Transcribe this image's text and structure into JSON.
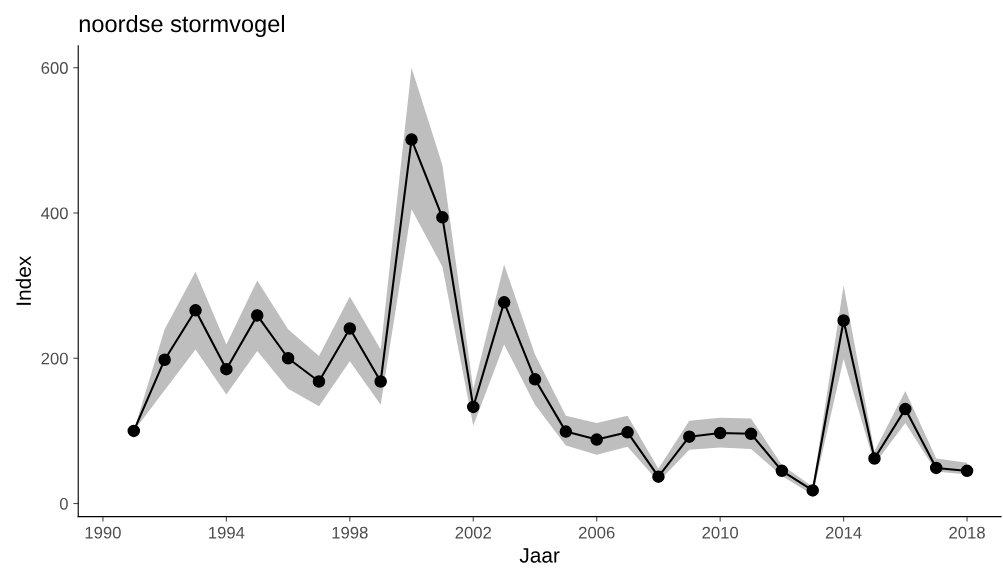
{
  "chart_data": {
    "type": "line",
    "title": "noordse stormvogel",
    "xlabel": "Jaar",
    "ylabel": "Index",
    "x": [
      1991,
      1992,
      1993,
      1994,
      1995,
      1996,
      1997,
      1998,
      1999,
      2000,
      2001,
      2002,
      2003,
      2004,
      2005,
      2006,
      2007,
      2008,
      2009,
      2010,
      2011,
      2012,
      2013,
      2014,
      2015,
      2016,
      2017,
      2018
    ],
    "series": [
      {
        "color": "#000000",
        "values": [
          100,
          198,
          266,
          185,
          259,
          200,
          168,
          241,
          168,
          501,
          394,
          133,
          277,
          171,
          99,
          88,
          98,
          37,
          92,
          97,
          96,
          45,
          18,
          252,
          62,
          130,
          49,
          45
        ],
        "lower": [
          100,
          156,
          212,
          150,
          210,
          158,
          134,
          196,
          136,
          405,
          326,
          107,
          219,
          136,
          80,
          67,
          78,
          30,
          74,
          77,
          75,
          38,
          12,
          199,
          54,
          111,
          44,
          40
        ],
        "upper": [
          100,
          240,
          319,
          219,
          307,
          240,
          203,
          285,
          212,
          600,
          466,
          158,
          329,
          205,
          121,
          111,
          121,
          48,
          114,
          118,
          117,
          53,
          23,
          300,
          72,
          155,
          62,
          56
        ]
      }
    ],
    "marker": "circle",
    "line_style": "solid",
    "grid": false,
    "legend": false,
    "xlim": [
      1989.2,
      2019.1
    ],
    "ylim": [
      -18,
      630
    ],
    "xticks": [
      1990,
      1994,
      1998,
      2002,
      2006,
      2010,
      2014,
      2018
    ],
    "yticks": [
      0,
      200,
      400,
      600
    ]
  }
}
